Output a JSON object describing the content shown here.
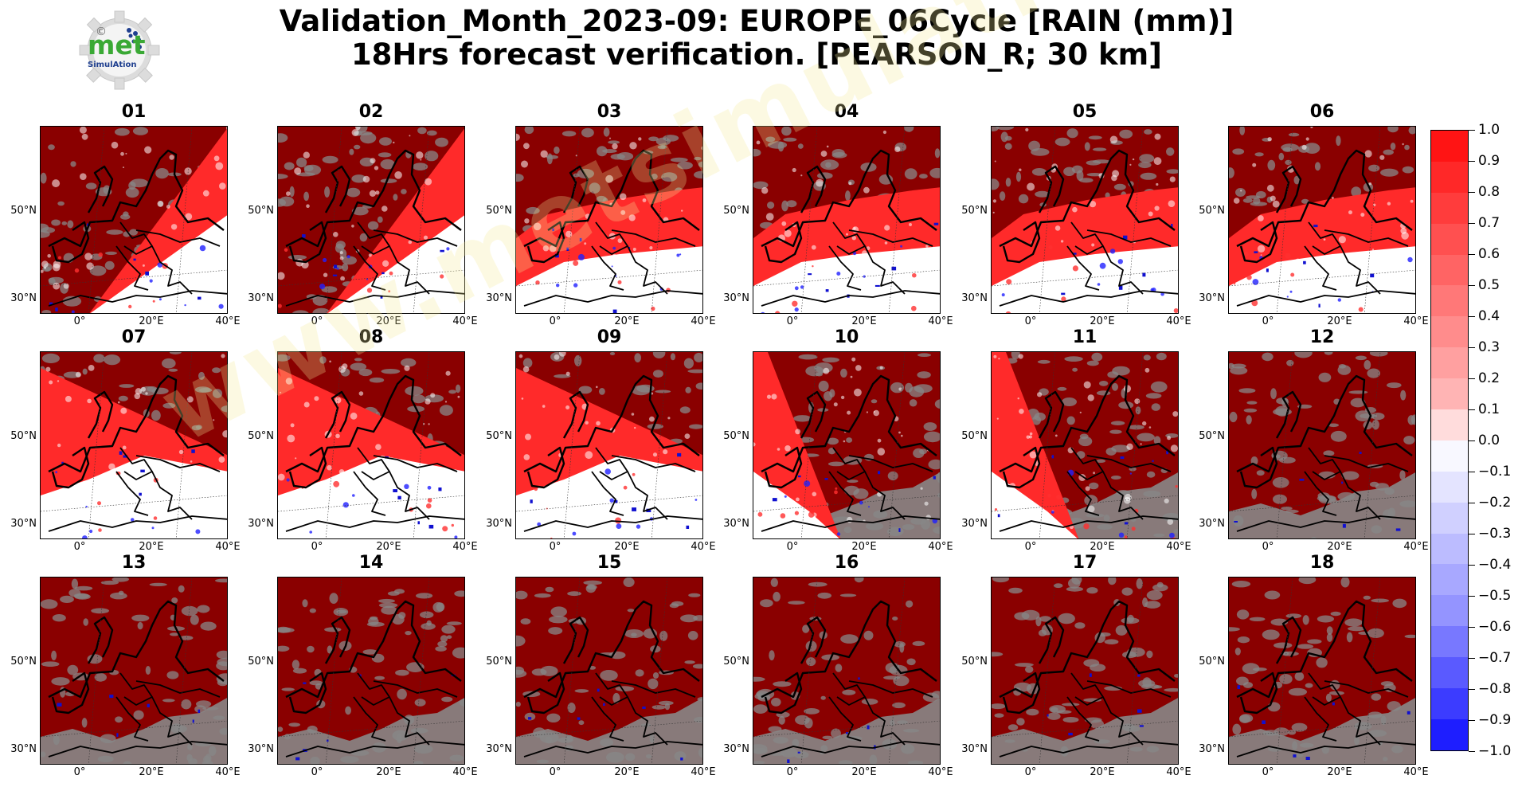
{
  "title": {
    "line1": "Validation_Month_2023-09: EUROPE_06Cycle [RAIN (mm)]",
    "line2": "18Hrs forecast verification.  [PEARSON_R; 30 km]"
  },
  "logo": {
    "text": "met",
    "subtext": "SimulAtion",
    "mark": "©",
    "brand_green": "#3aa935",
    "brand_blue": "#1f3f8f"
  },
  "watermark": "www.metsimulation.com",
  "axes": {
    "lat_labels": [
      "50°N",
      "30°N"
    ],
    "lon_labels": [
      "0°",
      "20°E",
      "40°E"
    ]
  },
  "panels": [
    {
      "label": "01",
      "coverage": "diagonal-east"
    },
    {
      "label": "02",
      "coverage": "diagonal-east"
    },
    {
      "label": "03",
      "coverage": "north-band"
    },
    {
      "label": "04",
      "coverage": "north-band"
    },
    {
      "label": "05",
      "coverage": "north-band"
    },
    {
      "label": "06",
      "coverage": "north-band"
    },
    {
      "label": "07",
      "coverage": "diagonal-west"
    },
    {
      "label": "08",
      "coverage": "diagonal-west"
    },
    {
      "label": "09",
      "coverage": "diagonal-west"
    },
    {
      "label": "10",
      "coverage": "west-wedge"
    },
    {
      "label": "11",
      "coverage": "west-wedge"
    },
    {
      "label": "12",
      "coverage": "full"
    },
    {
      "label": "13",
      "coverage": "full"
    },
    {
      "label": "14",
      "coverage": "full"
    },
    {
      "label": "15",
      "coverage": "full"
    },
    {
      "label": "16",
      "coverage": "full"
    },
    {
      "label": "17",
      "coverage": "full"
    },
    {
      "label": "18",
      "coverage": "full"
    }
  ],
  "colorbar": {
    "ticks": [
      "1.0",
      "0.9",
      "0.8",
      "0.7",
      "0.6",
      "0.5",
      "0.4",
      "0.3",
      "0.2",
      "0.1",
      "0.0",
      "−0.1",
      "−0.2",
      "−0.3",
      "−0.4",
      "−0.5",
      "−0.6",
      "−0.7",
      "−0.8",
      "−0.9",
      "−1.0"
    ],
    "colors": [
      "#ff1414",
      "#ff2828",
      "#ff3c3c",
      "#ff5050",
      "#ff6464",
      "#ff7878",
      "#ff8c8c",
      "#ffa0a0",
      "#ffb4b4",
      "#ffdcdc",
      "#f8f8ff",
      "#e4e4ff",
      "#d0d0ff",
      "#bcbcff",
      "#a8a8ff",
      "#9494ff",
      "#7878ff",
      "#5a5aff",
      "#3c3cff",
      "#1e1eff"
    ]
  },
  "colors": {
    "high_corr": "#8a0000",
    "mid_corr": "#ff2a2a",
    "no_data": "#878787",
    "coast": "#000000"
  }
}
